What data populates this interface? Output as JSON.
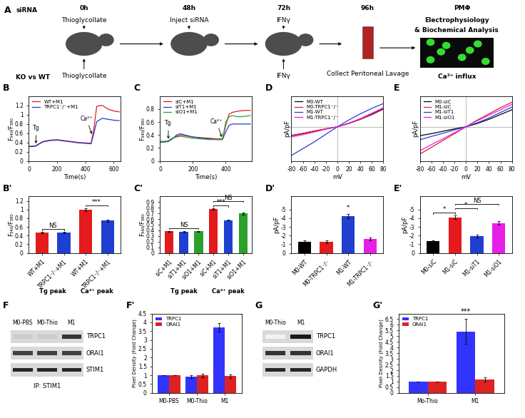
{
  "schematic": {
    "panel": "A",
    "rows": [
      {
        "label": "siRNA",
        "steps": [
          "Thioglycollate",
          "Inject siRNA",
          "IFNγ"
        ]
      },
      {
        "label": "KO vs WT",
        "steps": [
          "Thioglycollate",
          null,
          "IFNγ"
        ]
      }
    ],
    "times": [
      "0h",
      "48h",
      "72h",
      "96h"
    ],
    "collect": "Collect Peritoneal Lavage",
    "cells": "PMΦ",
    "readouts": [
      "Electrophysiology",
      "& Biochemical Analysis",
      "Ca²⁺ influx"
    ]
  },
  "chart_data": [
    {
      "panel": "B",
      "type": "line",
      "x_label": "Time(s)",
      "y_label": "F₃₄₀/F₃₈₀",
      "x": [
        0,
        25,
        50,
        75,
        100,
        150,
        200,
        250,
        300,
        350,
        400,
        440,
        460,
        480,
        520,
        560,
        600,
        640
      ],
      "series": [
        {
          "name": "WT+M1",
          "color": "#e41a1c",
          "values": [
            0.32,
            0.32,
            0.33,
            0.38,
            0.42,
            0.45,
            0.46,
            0.44,
            0.42,
            0.4,
            0.39,
            0.38,
            0.7,
            1.18,
            1.2,
            1.12,
            1.08,
            1.06
          ]
        },
        {
          "name": "TRPC1⁻/⁻+M1",
          "color": "#1f3fd1",
          "values": [
            0.31,
            0.31,
            0.32,
            0.37,
            0.41,
            0.44,
            0.45,
            0.43,
            0.41,
            0.39,
            0.38,
            0.37,
            0.6,
            0.85,
            0.92,
            0.9,
            0.88,
            0.87
          ]
        }
      ],
      "xlim": [
        0,
        650
      ],
      "xticks": [
        0,
        200,
        400,
        600
      ],
      "ylim": [
        0,
        1.4
      ],
      "yticks": [
        0,
        0.2,
        0.4,
        0.6,
        0.8,
        1,
        1.2
      ],
      "legend": "upper left",
      "annotations": [
        {
          "text": "Tg",
          "x": 50
        },
        {
          "text": "Ca²⁺",
          "x": 450
        }
      ]
    },
    {
      "panel": "C",
      "type": "line",
      "x_label": "Time(s)",
      "y_label": "F₃₄₀/F₃₈₀",
      "x": [
        0,
        25,
        50,
        75,
        100,
        125,
        150,
        200,
        250,
        300,
        350,
        380,
        400,
        420,
        440,
        480,
        520,
        550
      ],
      "series": [
        {
          "name": "siC+M1",
          "color": "#e41a1c",
          "values": [
            0.3,
            0.3,
            0.31,
            0.35,
            0.38,
            0.4,
            0.39,
            0.37,
            0.36,
            0.35,
            0.34,
            0.34,
            0.55,
            0.72,
            0.75,
            0.77,
            0.78,
            0.78
          ]
        },
        {
          "name": "siT1+M1",
          "color": "#1f3fd1",
          "values": [
            0.29,
            0.29,
            0.3,
            0.34,
            0.4,
            0.42,
            0.4,
            0.37,
            0.35,
            0.34,
            0.33,
            0.33,
            0.45,
            0.55,
            0.57,
            0.57,
            0.57,
            0.57
          ]
        },
        {
          "name": "siO1+M1",
          "color": "#2ca02c",
          "values": [
            0.3,
            0.3,
            0.31,
            0.35,
            0.37,
            0.38,
            0.37,
            0.35,
            0.34,
            0.33,
            0.33,
            0.33,
            0.6,
            0.68,
            0.7,
            0.68,
            0.69,
            0.7
          ]
        }
      ],
      "xlim": [
        0,
        560
      ],
      "xticks": [
        0,
        200,
        400
      ],
      "ylim": [
        0,
        1.0
      ],
      "yticks": [
        0,
        0.2,
        0.4,
        0.6,
        0.8
      ],
      "legend": "upper left",
      "annotations": [
        {
          "text": "Tg",
          "x": 50
        },
        {
          "text": "Ca²⁺",
          "x": 380
        }
      ]
    },
    {
      "panel": "D",
      "type": "line",
      "x_label": "mV",
      "y_label": "pA/pF",
      "x": [
        -80,
        -60,
        -40,
        -20,
        0,
        20,
        40,
        60,
        80
      ],
      "series": [
        {
          "name": "M0-WT",
          "color": "#000000",
          "values": [
            -1.3,
            -1.0,
            -0.65,
            -0.3,
            0,
            0.5,
            1.1,
            1.8,
            2.6
          ]
        },
        {
          "name": "M0-TRPC1⁻/⁻",
          "color": "#e41a1c",
          "values": [
            -1.25,
            -0.95,
            -0.6,
            -0.3,
            0,
            0.5,
            1.1,
            1.9,
            2.7
          ]
        },
        {
          "name": "M1-WT",
          "color": "#1f3fd1",
          "values": [
            -4.2,
            -3.2,
            -2.2,
            -1.1,
            0,
            1.0,
            1.9,
            2.7,
            3.4
          ]
        },
        {
          "name": "M1-TRPC1⁻/⁻",
          "color": "#e81ee8",
          "values": [
            -1.5,
            -1.15,
            -0.75,
            -0.35,
            0,
            0.55,
            1.2,
            2.0,
            2.8
          ]
        }
      ],
      "xlim": [
        -80,
        80
      ],
      "xticks": [
        -80,
        -60,
        -40,
        -20,
        0,
        20,
        40,
        60,
        80
      ],
      "ylim": [
        -5,
        4.5
      ],
      "yticks": [],
      "tick_labels": "x",
      "legend": "upper left"
    },
    {
      "panel": "E",
      "type": "line",
      "x_label": "mV",
      "y_label": "pA/pF",
      "x": [
        -80,
        -60,
        -40,
        -20,
        0,
        20,
        40,
        60,
        80
      ],
      "series": [
        {
          "name": "M0-siC",
          "color": "#000000",
          "values": [
            -1.3,
            -1.0,
            -0.65,
            -0.3,
            0,
            0.5,
            1.1,
            1.8,
            2.5
          ]
        },
        {
          "name": "M1-siC",
          "color": "#e41a1c",
          "values": [
            -4.0,
            -3.0,
            -2.0,
            -1.0,
            0,
            1.0,
            1.9,
            2.8,
            3.6
          ]
        },
        {
          "name": "M1-siT1",
          "color": "#1f3fd1",
          "values": [
            -1.9,
            -1.4,
            -0.95,
            -0.45,
            0,
            0.6,
            1.3,
            2.1,
            2.9
          ]
        },
        {
          "name": "M1-siO1",
          "color": "#e81ee8",
          "values": [
            -3.5,
            -2.6,
            -1.75,
            -0.85,
            0,
            0.9,
            1.7,
            2.5,
            3.3
          ]
        }
      ],
      "xlim": [
        -80,
        80
      ],
      "xticks": [
        -80,
        -60,
        -40,
        -20,
        0,
        20,
        40,
        60,
        80
      ],
      "ylim": [
        -5,
        4.5
      ],
      "yticks": [],
      "tick_labels": "x",
      "legend": "upper left"
    },
    {
      "panel": "B'",
      "type": "bar",
      "y_label": "F₃₄₀/F₃₈₀",
      "categories": [
        "WT+M1",
        "TRPC1⁻/⁻+M1",
        "WT+M1",
        "TRPC1⁻/⁻+M1"
      ],
      "group_labels": [
        "Tg peak",
        "Ca²⁺ peak"
      ],
      "values": [
        0.47,
        0.47,
        1.0,
        0.74
      ],
      "errors": [
        0.01,
        0.01,
        0.03,
        0.02
      ],
      "colors": [
        "#e41a1c",
        "#1f3fd1",
        "#e41a1c",
        "#1f3fd1"
      ],
      "ylim": [
        0,
        1.3
      ],
      "yticks": [
        0,
        0.2,
        0.4,
        0.6,
        0.8,
        1,
        1.2
      ],
      "annotations": [
        {
          "text": "NS",
          "between": [
            0,
            1
          ]
        },
        {
          "text": "***",
          "between": [
            2,
            3
          ]
        }
      ]
    },
    {
      "panel": "C'",
      "type": "bar",
      "y_label": "F₃₄₀/F₃₈₀",
      "categories": [
        "siC+M1",
        "siT1+M1",
        "siO1+M1",
        "siC+M1",
        "siT1+M1",
        "siO1+M1"
      ],
      "group_labels": [
        "Tg peak",
        "Ca²⁺ peak"
      ],
      "values": [
        0.38,
        0.37,
        0.38,
        0.78,
        0.58,
        0.7
      ],
      "errors": [
        0.01,
        0.01,
        0.01,
        0.01,
        0.01,
        0.02
      ],
      "colors": [
        "#e41a1c",
        "#1f3fd1",
        "#2ca02c",
        "#e41a1c",
        "#1f3fd1",
        "#2ca02c"
      ],
      "ylim": [
        0,
        1.0
      ],
      "yticks": [
        0,
        0.1,
        0.2,
        0.3,
        0.4,
        0.5,
        0.6,
        0.7,
        0.8,
        0.9
      ],
      "annotations": [
        {
          "text": "NS",
          "between": [
            0,
            2
          ]
        },
        {
          "text": "***",
          "between": [
            3,
            4
          ]
        },
        {
          "text": "NS",
          "between": [
            3,
            5
          ]
        }
      ]
    },
    {
      "panel": "D'",
      "type": "bar",
      "y_label": "pA/pF",
      "categories": [
        "M0-WT",
        "M0-TRPC1⁻/⁻",
        "M1-WT",
        "M1-TRPC1⁻/⁻"
      ],
      "values": [
        -1.3,
        -1.3,
        -4.2,
        -1.6
      ],
      "errors": [
        0.1,
        0.15,
        0.25,
        0.15
      ],
      "colors": [
        "#000000",
        "#e41a1c",
        "#1f3fd1",
        "#e81ee8"
      ],
      "ylim": [
        0,
        -6.5
      ],
      "yticks": [
        0,
        -1,
        -2,
        -3,
        -4,
        -5
      ],
      "annotations": [
        {
          "text": "*",
          "between": [
            2,
            2
          ]
        }
      ]
    },
    {
      "panel": "E'",
      "type": "bar",
      "y_label": "pA/pF",
      "categories": [
        "M0-siC",
        "M1-siC",
        "M1-siT1",
        "M1-siO1"
      ],
      "values": [
        -1.35,
        -4.1,
        -1.95,
        -3.45
      ],
      "errors": [
        0.08,
        0.2,
        0.15,
        0.2
      ],
      "colors": [
        "#000000",
        "#e41a1c",
        "#1f3fd1",
        "#e81ee8"
      ],
      "ylim": [
        0,
        -6.5
      ],
      "yticks": [
        0,
        -1,
        -2,
        -3,
        -4,
        -5
      ],
      "annotations": [
        {
          "text": "*",
          "between": [
            0,
            1
          ]
        },
        {
          "text": "*",
          "between": [
            1,
            2
          ]
        },
        {
          "text": "NS",
          "between": [
            1,
            3
          ]
        }
      ]
    },
    {
      "panel": "F'",
      "type": "bar",
      "y_label": "Pixel Density (Fold Change)",
      "categories": [
        "M0-PBS",
        "M0-Thio",
        "M1"
      ],
      "series": [
        {
          "name": "TRPC1",
          "color": "#3333ff",
          "values": [
            1,
            0.92,
            3.7
          ],
          "errors": [
            0,
            0.08,
            0.25
          ]
        },
        {
          "name": "ORAI1",
          "color": "#dd2222",
          "values": [
            1,
            1.0,
            0.95
          ],
          "errors": [
            0,
            0.1,
            0.1
          ]
        }
      ],
      "ylim": [
        0,
        4.5
      ],
      "yticks": [
        0,
        0.5,
        1,
        1.5,
        2,
        2.5,
        3,
        3.5,
        4,
        4.5
      ],
      "legend": "upper left"
    },
    {
      "panel": "G'",
      "type": "bar",
      "y_label": "Pixel Desnity (Fold Change)",
      "categories": [
        "Mo-Thio",
        "M1"
      ],
      "series": [
        {
          "name": "TRPC1",
          "color": "#3333ff",
          "values": [
            1,
            5.4
          ],
          "errors": [
            0,
            1.1
          ]
        },
        {
          "name": "ORAI1",
          "color": "#dd2222",
          "values": [
            1,
            1.2
          ],
          "errors": [
            0,
            0.2
          ]
        }
      ],
      "ylim": [
        0,
        7
      ],
      "yticks": [
        0,
        0.5,
        1,
        1.5,
        2,
        2.5,
        3,
        3.5,
        4,
        4.5,
        5,
        5.5,
        6,
        6.5
      ],
      "legend": "upper left",
      "annotations": [
        {
          "text": "***",
          "category": "M1",
          "series": "TRPC1"
        }
      ]
    }
  ],
  "blots": [
    {
      "panel": "F",
      "lanes": [
        "M0-PBS",
        "M0-Thio",
        "M1"
      ],
      "rows": [
        {
          "label": "TRPC1",
          "intensity": [
            0.2,
            0.2,
            0.8
          ]
        },
        {
          "label": "ORAI1",
          "intensity": [
            0.75,
            0.75,
            0.75
          ]
        },
        {
          "label": "STIM1",
          "intensity": [
            0.85,
            0.85,
            0.85
          ]
        }
      ],
      "caption": "IP: STIM1"
    },
    {
      "panel": "G",
      "lanes": [
        "M0-Thio",
        "M1"
      ],
      "rows": [
        {
          "label": "TRPC1",
          "intensity": [
            0.05,
            0.9
          ]
        },
        {
          "label": "ORAI1",
          "intensity": [
            0.8,
            0.8
          ]
        },
        {
          "label": "GAPDH",
          "intensity": [
            0.85,
            0.85
          ]
        }
      ]
    }
  ]
}
